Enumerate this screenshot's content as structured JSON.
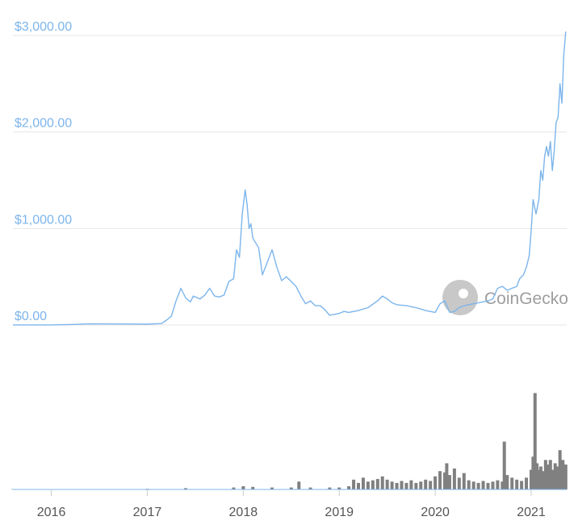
{
  "chart_data": {
    "type": "line",
    "title": "",
    "xlabel": "",
    "ylabel": "",
    "watermark": "CoinGecko",
    "y_tick_labels": [
      "$0.00",
      "$1,000.00",
      "$2,000.00",
      "$3,000.00"
    ],
    "y_tick_values": [
      0,
      1000,
      2000,
      3000
    ],
    "ylim": [
      0,
      3050
    ],
    "x_tick_labels": [
      "2016",
      "2017",
      "2018",
      "2019",
      "2020",
      "2021"
    ],
    "x_tick_values": [
      2016,
      2017,
      2018,
      2019,
      2020,
      2021
    ],
    "xlim": [
      2015.6,
      2021.37
    ],
    "grid": true,
    "colors": {
      "price_line": "#7cb5ec",
      "tick_text": "#7cb5ec",
      "volume_bars": "#808080",
      "grid": "#e6e6e6",
      "axis_text": "#555555"
    },
    "series": [
      {
        "type": "line",
        "x": [
          2015.6,
          2015.8,
          2016.0,
          2016.2,
          2016.4,
          2016.5,
          2016.8,
          2017.0,
          2017.15,
          2017.2,
          2017.25,
          2017.3,
          2017.35,
          2017.4,
          2017.45,
          2017.48,
          2017.55,
          2017.6,
          2017.65,
          2017.7,
          2017.75,
          2017.8,
          2017.85,
          2017.9,
          2017.93,
          2017.96,
          2017.99,
          2018.02,
          2018.04,
          2018.06,
          2018.08,
          2018.1,
          2018.13,
          2018.16,
          2018.2,
          2018.25,
          2018.3,
          2018.35,
          2018.4,
          2018.45,
          2018.5,
          2018.55,
          2018.6,
          2018.65,
          2018.7,
          2018.75,
          2018.8,
          2018.85,
          2018.9,
          2018.95,
          2019.0,
          2019.05,
          2019.1,
          2019.2,
          2019.3,
          2019.4,
          2019.45,
          2019.5,
          2019.55,
          2019.6,
          2019.7,
          2019.8,
          2019.9,
          2020.0,
          2020.05,
          2020.1,
          2020.15,
          2020.2,
          2020.25,
          2020.3,
          2020.35,
          2020.4,
          2020.45,
          2020.5,
          2020.55,
          2020.6,
          2020.65,
          2020.7,
          2020.75,
          2020.8,
          2020.85,
          2020.88,
          2020.92,
          2020.95,
          2020.98,
          2021.0,
          2021.02,
          2021.05,
          2021.08,
          2021.1,
          2021.12,
          2021.14,
          2021.16,
          2021.18,
          2021.2,
          2021.22,
          2021.24,
          2021.26,
          2021.28,
          2021.3,
          2021.32,
          2021.34,
          2021.36
        ],
        "values": [
          1,
          1,
          1,
          5,
          12,
          11,
          10,
          8,
          15,
          50,
          90,
          250,
          380,
          280,
          240,
          300,
          270,
          310,
          380,
          300,
          290,
          310,
          450,
          480,
          780,
          700,
          1150,
          1400,
          1250,
          1000,
          1050,
          900,
          850,
          800,
          520,
          650,
          780,
          600,
          460,
          500,
          450,
          400,
          300,
          220,
          250,
          200,
          200,
          160,
          100,
          110,
          120,
          140,
          130,
          150,
          180,
          250,
          300,
          270,
          230,
          210,
          200,
          180,
          150,
          130,
          220,
          250,
          130,
          140,
          180,
          200,
          210,
          220,
          230,
          240,
          250,
          270,
          380,
          400,
          360,
          380,
          400,
          480,
          520,
          600,
          720,
          980,
          1300,
          1150,
          1300,
          1600,
          1500,
          1750,
          1850,
          1750,
          1900,
          1600,
          1800,
          2100,
          2150,
          2500,
          2300,
          2800,
          3040
        ]
      },
      {
        "type": "bar",
        "name": "volume",
        "x": [
          2015.6,
          2016.0,
          2016.5,
          2017.0,
          2017.4,
          2017.9,
          2018.0,
          2018.1,
          2018.3,
          2018.5,
          2018.58,
          2018.7,
          2018.9,
          2019.0,
          2019.1,
          2019.15,
          2019.2,
          2019.25,
          2019.3,
          2019.35,
          2019.4,
          2019.45,
          2019.5,
          2019.55,
          2019.6,
          2019.65,
          2019.7,
          2019.75,
          2019.8,
          2019.85,
          2019.9,
          2019.95,
          2020.0,
          2020.05,
          2020.1,
          2020.12,
          2020.15,
          2020.2,
          2020.25,
          2020.3,
          2020.35,
          2020.4,
          2020.45,
          2020.5,
          2020.55,
          2020.6,
          2020.65,
          2020.7,
          2020.72,
          2020.75,
          2020.8,
          2020.85,
          2020.9,
          2020.95,
          2021.0,
          2021.02,
          2021.04,
          2021.06,
          2021.08,
          2021.1,
          2021.12,
          2021.15,
          2021.18,
          2021.2,
          2021.22,
          2021.25,
          2021.27,
          2021.3,
          2021.33,
          2021.36
        ],
        "values": [
          0.3,
          0.3,
          0.5,
          1,
          2,
          3,
          5,
          4,
          3,
          3,
          12,
          3,
          3,
          3,
          5,
          15,
          10,
          18,
          12,
          14,
          16,
          20,
          15,
          12,
          10,
          13,
          10,
          14,
          10,
          12,
          15,
          13,
          20,
          28,
          26,
          40,
          22,
          32,
          18,
          25,
          14,
          12,
          10,
          13,
          10,
          12,
          14,
          12,
          73,
          22,
          18,
          15,
          13,
          18,
          30,
          50,
          147,
          40,
          30,
          35,
          28,
          45,
          38,
          45,
          30,
          40,
          35,
          60,
          45,
          38
        ]
      }
    ]
  }
}
